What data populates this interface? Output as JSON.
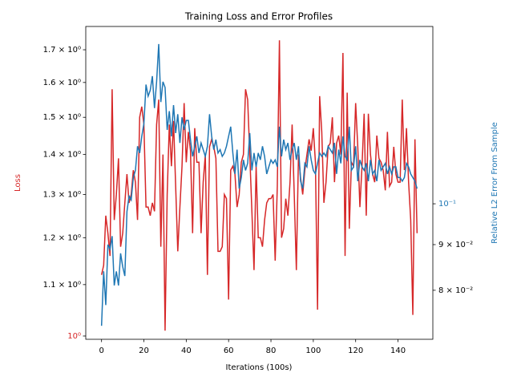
{
  "chart_data": {
    "type": "line",
    "title": "Training Loss and Error Profiles",
    "xlabel": "Iterations (100s)",
    "ylabel": "Loss",
    "y2label": "Relative L2 Error From Sample",
    "ylabel_color": "#d62728",
    "y2label_color": "#1f77b4",
    "yscale": "log",
    "y2scale": "log",
    "xlim": [
      -7.45,
      156.45
    ],
    "ylim": [
      0.994,
      1.775
    ],
    "y2lim": [
      0.0705,
      0.158
    ],
    "xticks": [
      0,
      20,
      40,
      60,
      80,
      100,
      120,
      140
    ],
    "yticks": [
      {
        "value": 1.0,
        "label": "10⁰",
        "color": "#d62728"
      },
      {
        "value": 1.1,
        "label": "1.1 × 10⁰"
      },
      {
        "value": 1.2,
        "label": "1.2 × 10⁰"
      },
      {
        "value": 1.3,
        "label": "1.3 × 10⁰"
      },
      {
        "value": 1.4,
        "label": "1.4 × 10⁰"
      },
      {
        "value": 1.5,
        "label": "1.5 × 10⁰"
      },
      {
        "value": 1.6,
        "label": "1.6 × 10⁰"
      },
      {
        "value": 1.7,
        "label": "1.7 × 10⁰"
      }
    ],
    "y2ticks": [
      {
        "value": 0.08,
        "label": "8 × 10⁻²"
      },
      {
        "value": 0.09,
        "label": "9 × 10⁻²"
      },
      {
        "value": 0.1,
        "label": "10⁻¹",
        "color": "#1f77b4"
      }
    ],
    "x": [
      0,
      1,
      2,
      3,
      4,
      5,
      6,
      7,
      8,
      9,
      10,
      11,
      12,
      13,
      14,
      15,
      16,
      17,
      18,
      19,
      20,
      21,
      22,
      23,
      24,
      25,
      26,
      27,
      28,
      29,
      30,
      31,
      32,
      33,
      34,
      35,
      36,
      37,
      38,
      39,
      40,
      41,
      42,
      43,
      44,
      45,
      46,
      47,
      48,
      49,
      50,
      51,
      52,
      53,
      54,
      55,
      56,
      57,
      58,
      59,
      60,
      61,
      62,
      63,
      64,
      65,
      66,
      67,
      68,
      69,
      70,
      71,
      72,
      73,
      74,
      75,
      76,
      77,
      78,
      79,
      80,
      81,
      82,
      83,
      84,
      85,
      86,
      87,
      88,
      89,
      90,
      91,
      92,
      93,
      94,
      95,
      96,
      97,
      98,
      99,
      100,
      101,
      102,
      103,
      104,
      105,
      106,
      107,
      108,
      109,
      110,
      111,
      112,
      113,
      114,
      115,
      116,
      117,
      118,
      119,
      120,
      121,
      122,
      123,
      124,
      125,
      126,
      127,
      128,
      129,
      130,
      131,
      132,
      133,
      134,
      135,
      136,
      137,
      138,
      139,
      140,
      141,
      142,
      143,
      144,
      145,
      146,
      147,
      148,
      149
    ],
    "series": [
      {
        "color": "#d62728",
        "axis": "y",
        "values": [
          1.12,
          1.14,
          1.25,
          1.21,
          1.16,
          1.58,
          1.24,
          1.3,
          1.39,
          1.18,
          1.21,
          1.28,
          1.35,
          1.28,
          1.3,
          1.36,
          1.33,
          1.24,
          1.5,
          1.53,
          1.48,
          1.27,
          1.27,
          1.25,
          1.28,
          1.26,
          1.48,
          1.55,
          1.18,
          1.4,
          1.01,
          1.3,
          1.48,
          1.37,
          1.49,
          1.32,
          1.17,
          1.27,
          1.37,
          1.54,
          1.38,
          1.46,
          1.41,
          1.21,
          1.47,
          1.38,
          1.38,
          1.21,
          1.33,
          1.4,
          1.12,
          1.42,
          1.44,
          1.42,
          1.39,
          1.17,
          1.17,
          1.18,
          1.3,
          1.29,
          1.07,
          1.36,
          1.37,
          1.35,
          1.27,
          1.3,
          1.38,
          1.4,
          1.58,
          1.55,
          1.4,
          1.26,
          1.13,
          1.37,
          1.2,
          1.2,
          1.18,
          1.24,
          1.28,
          1.29,
          1.29,
          1.3,
          1.15,
          1.32,
          1.73,
          1.2,
          1.22,
          1.29,
          1.25,
          1.33,
          1.48,
          1.3,
          1.13,
          1.4,
          1.34,
          1.3,
          1.36,
          1.4,
          1.44,
          1.41,
          1.47,
          1.38,
          1.05,
          1.56,
          1.46,
          1.28,
          1.33,
          1.42,
          1.43,
          1.5,
          1.33,
          1.43,
          1.45,
          1.4,
          1.69,
          1.16,
          1.57,
          1.22,
          1.38,
          1.37,
          1.54,
          1.42,
          1.27,
          1.37,
          1.51,
          1.25,
          1.51,
          1.4,
          1.35,
          1.33,
          1.45,
          1.39,
          1.38,
          1.36,
          1.31,
          1.46,
          1.32,
          1.33,
          1.42,
          1.35,
          1.33,
          1.33,
          1.55,
          1.36,
          1.47,
          1.33,
          1.24,
          1.04,
          1.44,
          1.21
        ]
      },
      {
        "color": "#1f77b4",
        "axis": "y2",
        "values": [
          0.073,
          0.084,
          0.077,
          0.09,
          0.089,
          0.092,
          0.081,
          0.084,
          0.081,
          0.088,
          0.085,
          0.083,
          0.098,
          0.102,
          0.101,
          0.107,
          0.109,
          0.116,
          0.114,
          0.119,
          0.123,
          0.136,
          0.132,
          0.134,
          0.139,
          0.128,
          0.137,
          0.151,
          0.13,
          0.137,
          0.135,
          0.121,
          0.127,
          0.119,
          0.129,
          0.12,
          0.126,
          0.117,
          0.125,
          0.121,
          0.124,
          0.124,
          0.118,
          0.113,
          0.116,
          0.119,
          0.114,
          0.117,
          0.115,
          0.113,
          0.116,
          0.126,
          0.119,
          0.115,
          0.118,
          0.114,
          0.115,
          0.113,
          0.114,
          0.116,
          0.119,
          0.122,
          0.114,
          0.108,
          0.115,
          0.104,
          0.107,
          0.112,
          0.109,
          0.111,
          0.12,
          0.109,
          0.114,
          0.11,
          0.114,
          0.112,
          0.116,
          0.113,
          0.108,
          0.11,
          0.112,
          0.111,
          0.112,
          0.11,
          0.122,
          0.113,
          0.118,
          0.115,
          0.117,
          0.112,
          0.115,
          0.117,
          0.112,
          0.116,
          0.106,
          0.104,
          0.111,
          0.11,
          0.116,
          0.112,
          0.109,
          0.108,
          0.111,
          0.114,
          0.113,
          0.114,
          0.113,
          0.116,
          0.115,
          0.114,
          0.117,
          0.108,
          0.115,
          0.111,
          0.119,
          0.113,
          0.112,
          0.122,
          0.109,
          0.11,
          0.116,
          0.106,
          0.112,
          0.11,
          0.109,
          0.111,
          0.106,
          0.112,
          0.108,
          0.109,
          0.106,
          0.112,
          0.109,
          0.11,
          0.111,
          0.108,
          0.11,
          0.108,
          0.11,
          0.11,
          0.107,
          0.107,
          0.106,
          0.107,
          0.111,
          0.11,
          0.108,
          0.107,
          0.106,
          0.104
        ]
      }
    ]
  }
}
